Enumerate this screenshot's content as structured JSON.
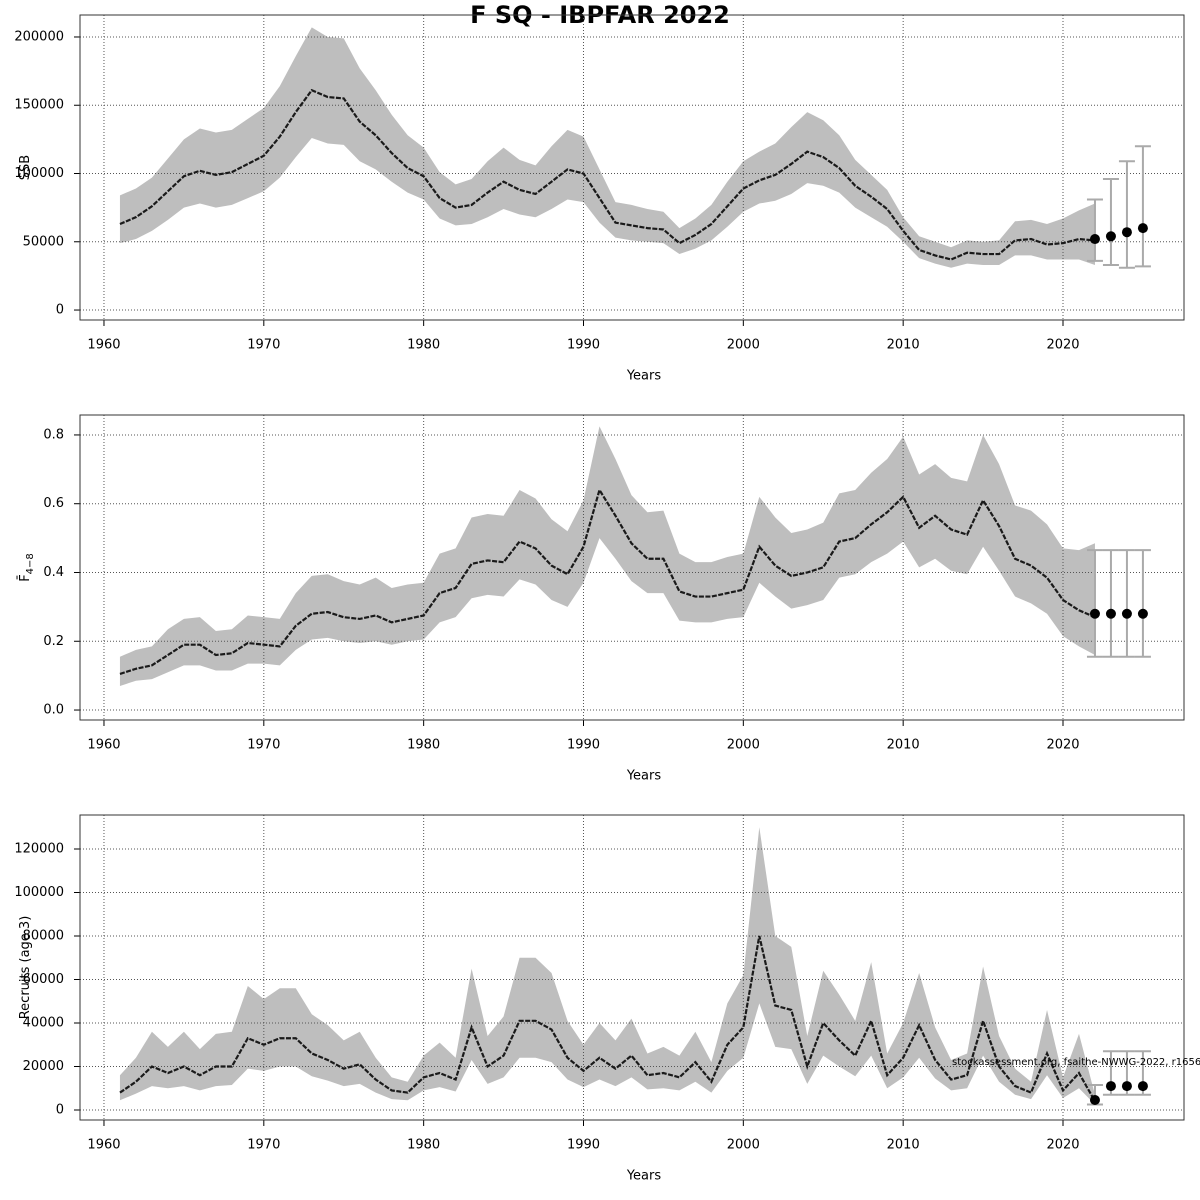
{
  "title": "F SQ - IBPFAR 2022",
  "footnote": "stockassessment.org, fsaithe-NWWG-2022, r1656",
  "chart_data": [
    {
      "type": "line",
      "xlabel": "Years",
      "ylabel": "SSB",
      "x": [
        1961,
        1962,
        1963,
        1964,
        1965,
        1966,
        1967,
        1968,
        1969,
        1970,
        1971,
        1972,
        1973,
        1974,
        1975,
        1976,
        1977,
        1978,
        1979,
        1980,
        1981,
        1982,
        1983,
        1984,
        1985,
        1986,
        1987,
        1988,
        1989,
        1990,
        1991,
        1992,
        1993,
        1994,
        1995,
        1996,
        1997,
        1998,
        1999,
        2000,
        2001,
        2002,
        2003,
        2004,
        2005,
        2006,
        2007,
        2008,
        2009,
        2010,
        2011,
        2012,
        2013,
        2014,
        2015,
        2016,
        2017,
        2018,
        2019,
        2020,
        2021,
        2022
      ],
      "values": [
        63000,
        68000,
        76000,
        87000,
        98000,
        102000,
        99000,
        101000,
        107000,
        113000,
        127000,
        145000,
        161000,
        156000,
        155000,
        138000,
        128000,
        115000,
        104000,
        98000,
        82000,
        75000,
        77000,
        86000,
        94000,
        88000,
        85000,
        94000,
        103000,
        100000,
        82000,
        64000,
        62000,
        60000,
        59000,
        49000,
        55000,
        63000,
        76000,
        89000,
        95000,
        99000,
        107000,
        116000,
        112000,
        104000,
        91000,
        83000,
        74000,
        58000,
        44000,
        40000,
        37000,
        42000,
        41000,
        41000,
        51000,
        52000,
        48000,
        49000,
        52000,
        51000
      ],
      "lower": [
        49000,
        52000,
        58000,
        66000,
        75000,
        78000,
        75000,
        77000,
        82000,
        87000,
        97000,
        112000,
        126000,
        122000,
        121000,
        109000,
        103000,
        94000,
        86000,
        81000,
        67000,
        62000,
        63000,
        68000,
        74000,
        70000,
        68000,
        74000,
        81000,
        79000,
        64000,
        53000,
        51000,
        50000,
        49000,
        41000,
        45000,
        51000,
        61000,
        72000,
        78000,
        80000,
        85000,
        93000,
        91000,
        86000,
        75000,
        68000,
        61000,
        50000,
        38000,
        34000,
        31000,
        34000,
        33000,
        33000,
        40000,
        40000,
        37000,
        37000,
        37000,
        33000
      ],
      "upper": [
        84000,
        89000,
        97000,
        111000,
        125000,
        133000,
        130000,
        132000,
        140000,
        148000,
        164000,
        186000,
        207000,
        200000,
        199000,
        177000,
        161000,
        143000,
        128000,
        119000,
        101000,
        92000,
        96000,
        109000,
        119000,
        110000,
        106000,
        120000,
        132000,
        127000,
        103000,
        79000,
        77000,
        74000,
        72000,
        60000,
        67000,
        77000,
        94000,
        109000,
        116000,
        122000,
        134000,
        145000,
        139000,
        128000,
        110000,
        99000,
        88000,
        68000,
        54000,
        50000,
        46000,
        51000,
        50000,
        51000,
        65000,
        66000,
        63000,
        67000,
        73000,
        78000
      ],
      "forecast": {
        "x": [
          2022,
          2023,
          2024,
          2025
        ],
        "values": [
          52000,
          54000,
          57000,
          60000
        ],
        "lower": [
          36000,
          33000,
          31000,
          32000
        ],
        "upper": [
          81000,
          96000,
          109000,
          120000
        ]
      },
      "line_color": "#1a1a1a",
      "band_color": "#bebebe",
      "point_color": "#000000",
      "bar_color": "#aaaaaa",
      "xlim": [
        1958.5,
        2027.57
      ],
      "xticks": [
        1960,
        1970,
        1980,
        1990,
        2000,
        2010,
        2020
      ],
      "ylim": [
        -7300,
        216100
      ],
      "yticks": [
        0,
        50000,
        100000,
        150000,
        200000
      ],
      "grid": true
    },
    {
      "type": "line",
      "xlabel": "Years",
      "ylabel": "F̄",
      "ylabel_sub": "4−8",
      "x": [
        1961,
        1962,
        1963,
        1964,
        1965,
        1966,
        1967,
        1968,
        1969,
        1970,
        1971,
        1972,
        1973,
        1974,
        1975,
        1976,
        1977,
        1978,
        1979,
        1980,
        1981,
        1982,
        1983,
        1984,
        1985,
        1986,
        1987,
        1988,
        1989,
        1990,
        1991,
        1992,
        1993,
        1994,
        1995,
        1996,
        1997,
        1998,
        1999,
        2000,
        2001,
        2002,
        2003,
        2004,
        2005,
        2006,
        2007,
        2008,
        2009,
        2010,
        2011,
        2012,
        2013,
        2014,
        2015,
        2016,
        2017,
        2018,
        2019,
        2020,
        2021,
        2022
      ],
      "values": [
        0.105,
        0.12,
        0.13,
        0.16,
        0.19,
        0.19,
        0.16,
        0.165,
        0.195,
        0.19,
        0.185,
        0.245,
        0.28,
        0.285,
        0.27,
        0.265,
        0.275,
        0.255,
        0.265,
        0.275,
        0.34,
        0.355,
        0.425,
        0.435,
        0.43,
        0.49,
        0.47,
        0.42,
        0.395,
        0.475,
        0.64,
        0.565,
        0.485,
        0.44,
        0.44,
        0.345,
        0.33,
        0.33,
        0.34,
        0.35,
        0.475,
        0.42,
        0.39,
        0.4,
        0.415,
        0.49,
        0.5,
        0.54,
        0.575,
        0.62,
        0.53,
        0.565,
        0.525,
        0.51,
        0.61,
        0.535,
        0.44,
        0.42,
        0.385,
        0.32,
        0.29,
        0.27
      ],
      "lower": [
        0.07,
        0.085,
        0.09,
        0.11,
        0.13,
        0.13,
        0.115,
        0.115,
        0.135,
        0.135,
        0.13,
        0.175,
        0.205,
        0.21,
        0.2,
        0.195,
        0.2,
        0.19,
        0.2,
        0.205,
        0.255,
        0.27,
        0.325,
        0.335,
        0.33,
        0.38,
        0.365,
        0.32,
        0.3,
        0.37,
        0.5,
        0.44,
        0.375,
        0.34,
        0.34,
        0.26,
        0.255,
        0.255,
        0.265,
        0.27,
        0.37,
        0.33,
        0.295,
        0.305,
        0.32,
        0.385,
        0.395,
        0.43,
        0.455,
        0.49,
        0.415,
        0.44,
        0.405,
        0.395,
        0.475,
        0.405,
        0.33,
        0.31,
        0.28,
        0.215,
        0.185,
        0.16
      ],
      "upper": [
        0.155,
        0.175,
        0.185,
        0.235,
        0.265,
        0.27,
        0.23,
        0.235,
        0.275,
        0.27,
        0.265,
        0.34,
        0.39,
        0.395,
        0.375,
        0.365,
        0.385,
        0.355,
        0.365,
        0.37,
        0.455,
        0.47,
        0.56,
        0.57,
        0.565,
        0.64,
        0.615,
        0.555,
        0.52,
        0.61,
        0.825,
        0.73,
        0.625,
        0.575,
        0.58,
        0.455,
        0.43,
        0.43,
        0.445,
        0.455,
        0.62,
        0.56,
        0.515,
        0.525,
        0.545,
        0.63,
        0.64,
        0.69,
        0.73,
        0.795,
        0.685,
        0.715,
        0.675,
        0.665,
        0.8,
        0.715,
        0.595,
        0.58,
        0.54,
        0.47,
        0.465,
        0.485
      ],
      "forecast": {
        "x": [
          2022,
          2023,
          2024,
          2025
        ],
        "values": [
          0.28,
          0.28,
          0.28,
          0.28
        ],
        "lower": [
          0.155,
          0.155,
          0.155,
          0.155
        ],
        "upper": [
          0.465,
          0.465,
          0.465,
          0.465
        ]
      },
      "line_color": "#1a1a1a",
      "band_color": "#bebebe",
      "point_color": "#000000",
      "bar_color": "#aaaaaa",
      "xlim": [
        1958.5,
        2027.57
      ],
      "xticks": [
        1960,
        1970,
        1980,
        1990,
        2000,
        2010,
        2020
      ],
      "ylim": [
        -0.029,
        0.858
      ],
      "yticks": [
        {
          "value": 0,
          "label": "0.0"
        },
        0.2,
        0.4,
        0.6,
        0.8
      ],
      "grid": true
    },
    {
      "type": "line",
      "xlabel": "Years",
      "ylabel": "Recruits (age 3)",
      "x": [
        1961,
        1962,
        1963,
        1964,
        1965,
        1966,
        1967,
        1968,
        1969,
        1970,
        1971,
        1972,
        1973,
        1974,
        1975,
        1976,
        1977,
        1978,
        1979,
        1980,
        1981,
        1982,
        1983,
        1984,
        1985,
        1986,
        1987,
        1988,
        1989,
        1990,
        1991,
        1992,
        1993,
        1994,
        1995,
        1996,
        1997,
        1998,
        1999,
        2000,
        2001,
        2002,
        2003,
        2004,
        2005,
        2006,
        2007,
        2008,
        2009,
        2010,
        2011,
        2012,
        2013,
        2014,
        2015,
        2016,
        2017,
        2018,
        2019,
        2020,
        2021,
        2022
      ],
      "values": [
        8000,
        13000,
        20000,
        17000,
        20000,
        16000,
        20000,
        20000,
        33000,
        30000,
        33000,
        33000,
        26000,
        23000,
        19000,
        21000,
        14000,
        9000,
        8000,
        15000,
        17000,
        14000,
        38000,
        20000,
        25000,
        41000,
        41000,
        37000,
        24000,
        18000,
        24000,
        19000,
        25000,
        16000,
        17000,
        15000,
        22000,
        13000,
        30000,
        38000,
        80000,
        48000,
        46000,
        20000,
        40000,
        32000,
        25000,
        41000,
        16000,
        24000,
        39000,
        23000,
        14000,
        16000,
        41000,
        20000,
        11000,
        8000,
        26000,
        9000,
        17000,
        4000
      ],
      "lower": [
        4500,
        7500,
        11000,
        10000,
        11000,
        9000,
        11000,
        11500,
        19000,
        18000,
        20000,
        20000,
        15500,
        13500,
        11000,
        12000,
        8000,
        5000,
        4500,
        9000,
        10500,
        8500,
        23000,
        12000,
        15000,
        24000,
        24000,
        22000,
        14000,
        10500,
        14000,
        11000,
        15000,
        9500,
        10000,
        9000,
        13000,
        8000,
        18000,
        24000,
        49000,
        29000,
        28000,
        12000,
        25000,
        20000,
        15500,
        25000,
        10000,
        15000,
        24000,
        14500,
        9000,
        10000,
        25000,
        13000,
        7000,
        5000,
        16000,
        5500,
        10000,
        2500
      ],
      "upper": [
        16000,
        24000,
        36000,
        29000,
        36000,
        28000,
        35000,
        36000,
        57000,
        51000,
        56000,
        56000,
        44000,
        39000,
        32000,
        36000,
        24000,
        15000,
        13000,
        25000,
        31000,
        24000,
        65000,
        34000,
        43000,
        70000,
        70000,
        63000,
        41000,
        30000,
        40000,
        32000,
        42000,
        26000,
        29000,
        25000,
        36000,
        22000,
        49000,
        62000,
        130000,
        80000,
        75000,
        34000,
        64000,
        53000,
        41000,
        68000,
        26000,
        40000,
        63000,
        38000,
        23000,
        26000,
        66000,
        34000,
        19000,
        13000,
        46000,
        15000,
        35000,
        7000
      ],
      "forecast": {
        "x": [
          2022,
          2023,
          2024,
          2025
        ],
        "values": [
          4600,
          11000,
          11000,
          11000
        ],
        "lower": [
          2500,
          7000,
          7000,
          7000
        ],
        "upper": [
          11500,
          27000,
          27000,
          27000
        ]
      },
      "line_color": "#1a1a1a",
      "band_color": "#bebebe",
      "point_color": "#000000",
      "bar_color": "#aaaaaa",
      "xlim": [
        1958.5,
        2027.57
      ],
      "xticks": [
        1960,
        1970,
        1980,
        1990,
        2000,
        2010,
        2020
      ],
      "ylim": [
        -4600,
        135630
      ],
      "yticks": [
        0,
        20000,
        40000,
        60000,
        80000,
        100000,
        120000
      ],
      "grid": true
    }
  ]
}
